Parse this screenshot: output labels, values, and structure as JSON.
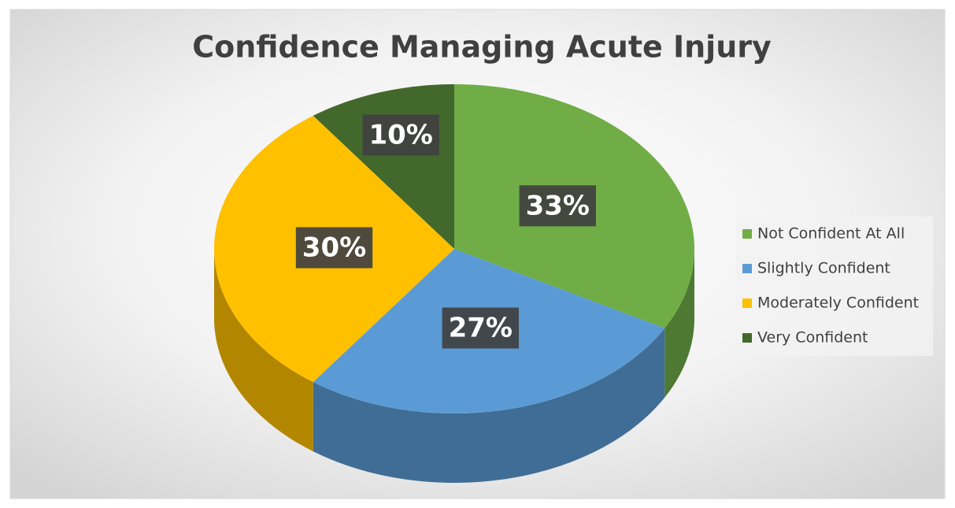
{
  "chart_data": {
    "type": "pie",
    "title": "Confidence Managing Acute Injury",
    "categories": [
      "Not Confident At All",
      "Slightly Confident",
      "Moderately Confident",
      "Very Confident"
    ],
    "values": [
      33,
      27,
      30,
      10
    ],
    "value_labels": [
      "33%",
      "27%",
      "30%",
      "10%"
    ],
    "colors": [
      "#70ad47",
      "#5b9bd5",
      "#ffc000",
      "#43682b"
    ],
    "legend": "right"
  }
}
